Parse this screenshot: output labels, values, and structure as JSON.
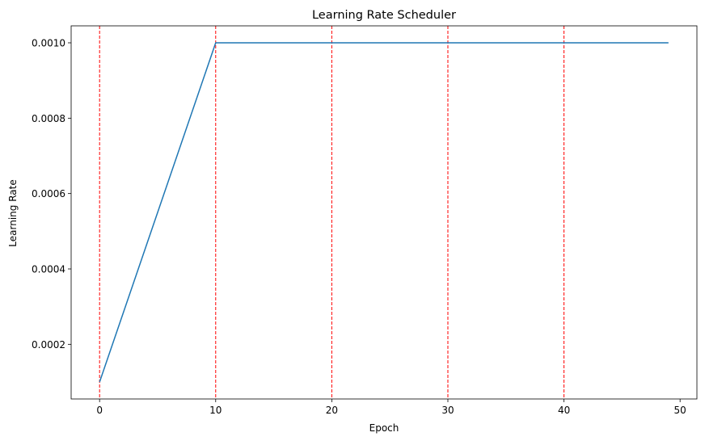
{
  "chart_data": {
    "type": "line",
    "title": "Learning Rate Scheduler",
    "xlabel": "Epoch",
    "ylabel": "Learning Rate",
    "xlim": [
      -2.45,
      51.45
    ],
    "ylim": [
      5.5e-05,
      0.001045
    ],
    "xticks": [
      0,
      10,
      20,
      30,
      40,
      50
    ],
    "xtick_labels": [
      "0",
      "10",
      "20",
      "30",
      "40",
      "50"
    ],
    "yticks": [
      0.0002,
      0.0004,
      0.0006,
      0.0008,
      0.001
    ],
    "ytick_labels": [
      "0.0002",
      "0.0004",
      "0.0006",
      "0.0008",
      "0.0010"
    ],
    "grid": false,
    "series": [
      {
        "color": "#1f77b4",
        "x": [
          0,
          10,
          11,
          12,
          13,
          14,
          15,
          16,
          17,
          18,
          19,
          20,
          21,
          22,
          23,
          24,
          25,
          26,
          27,
          28,
          29,
          30,
          31,
          32,
          33,
          34,
          35,
          36,
          37,
          38,
          39,
          40,
          41,
          42,
          43,
          44,
          45,
          46,
          47,
          48,
          49
        ],
        "y": [
          0.0001,
          0.001,
          0.001,
          0.001,
          0.001,
          0.001,
          0.001,
          0.001,
          0.001,
          0.001,
          0.001,
          0.001,
          0.001,
          0.001,
          0.001,
          0.001,
          0.001,
          0.001,
          0.001,
          0.001,
          0.001,
          0.001,
          0.001,
          0.001,
          0.001,
          0.001,
          0.001,
          0.001,
          0.001,
          0.001,
          0.001,
          0.001,
          0.001,
          0.001,
          0.001,
          0.001,
          0.001,
          0.001,
          0.001,
          0.001,
          0.001
        ]
      }
    ],
    "vlines": {
      "x": [
        0,
        10,
        20,
        30,
        40
      ],
      "color": "#ff0000",
      "style": "dashed"
    }
  }
}
